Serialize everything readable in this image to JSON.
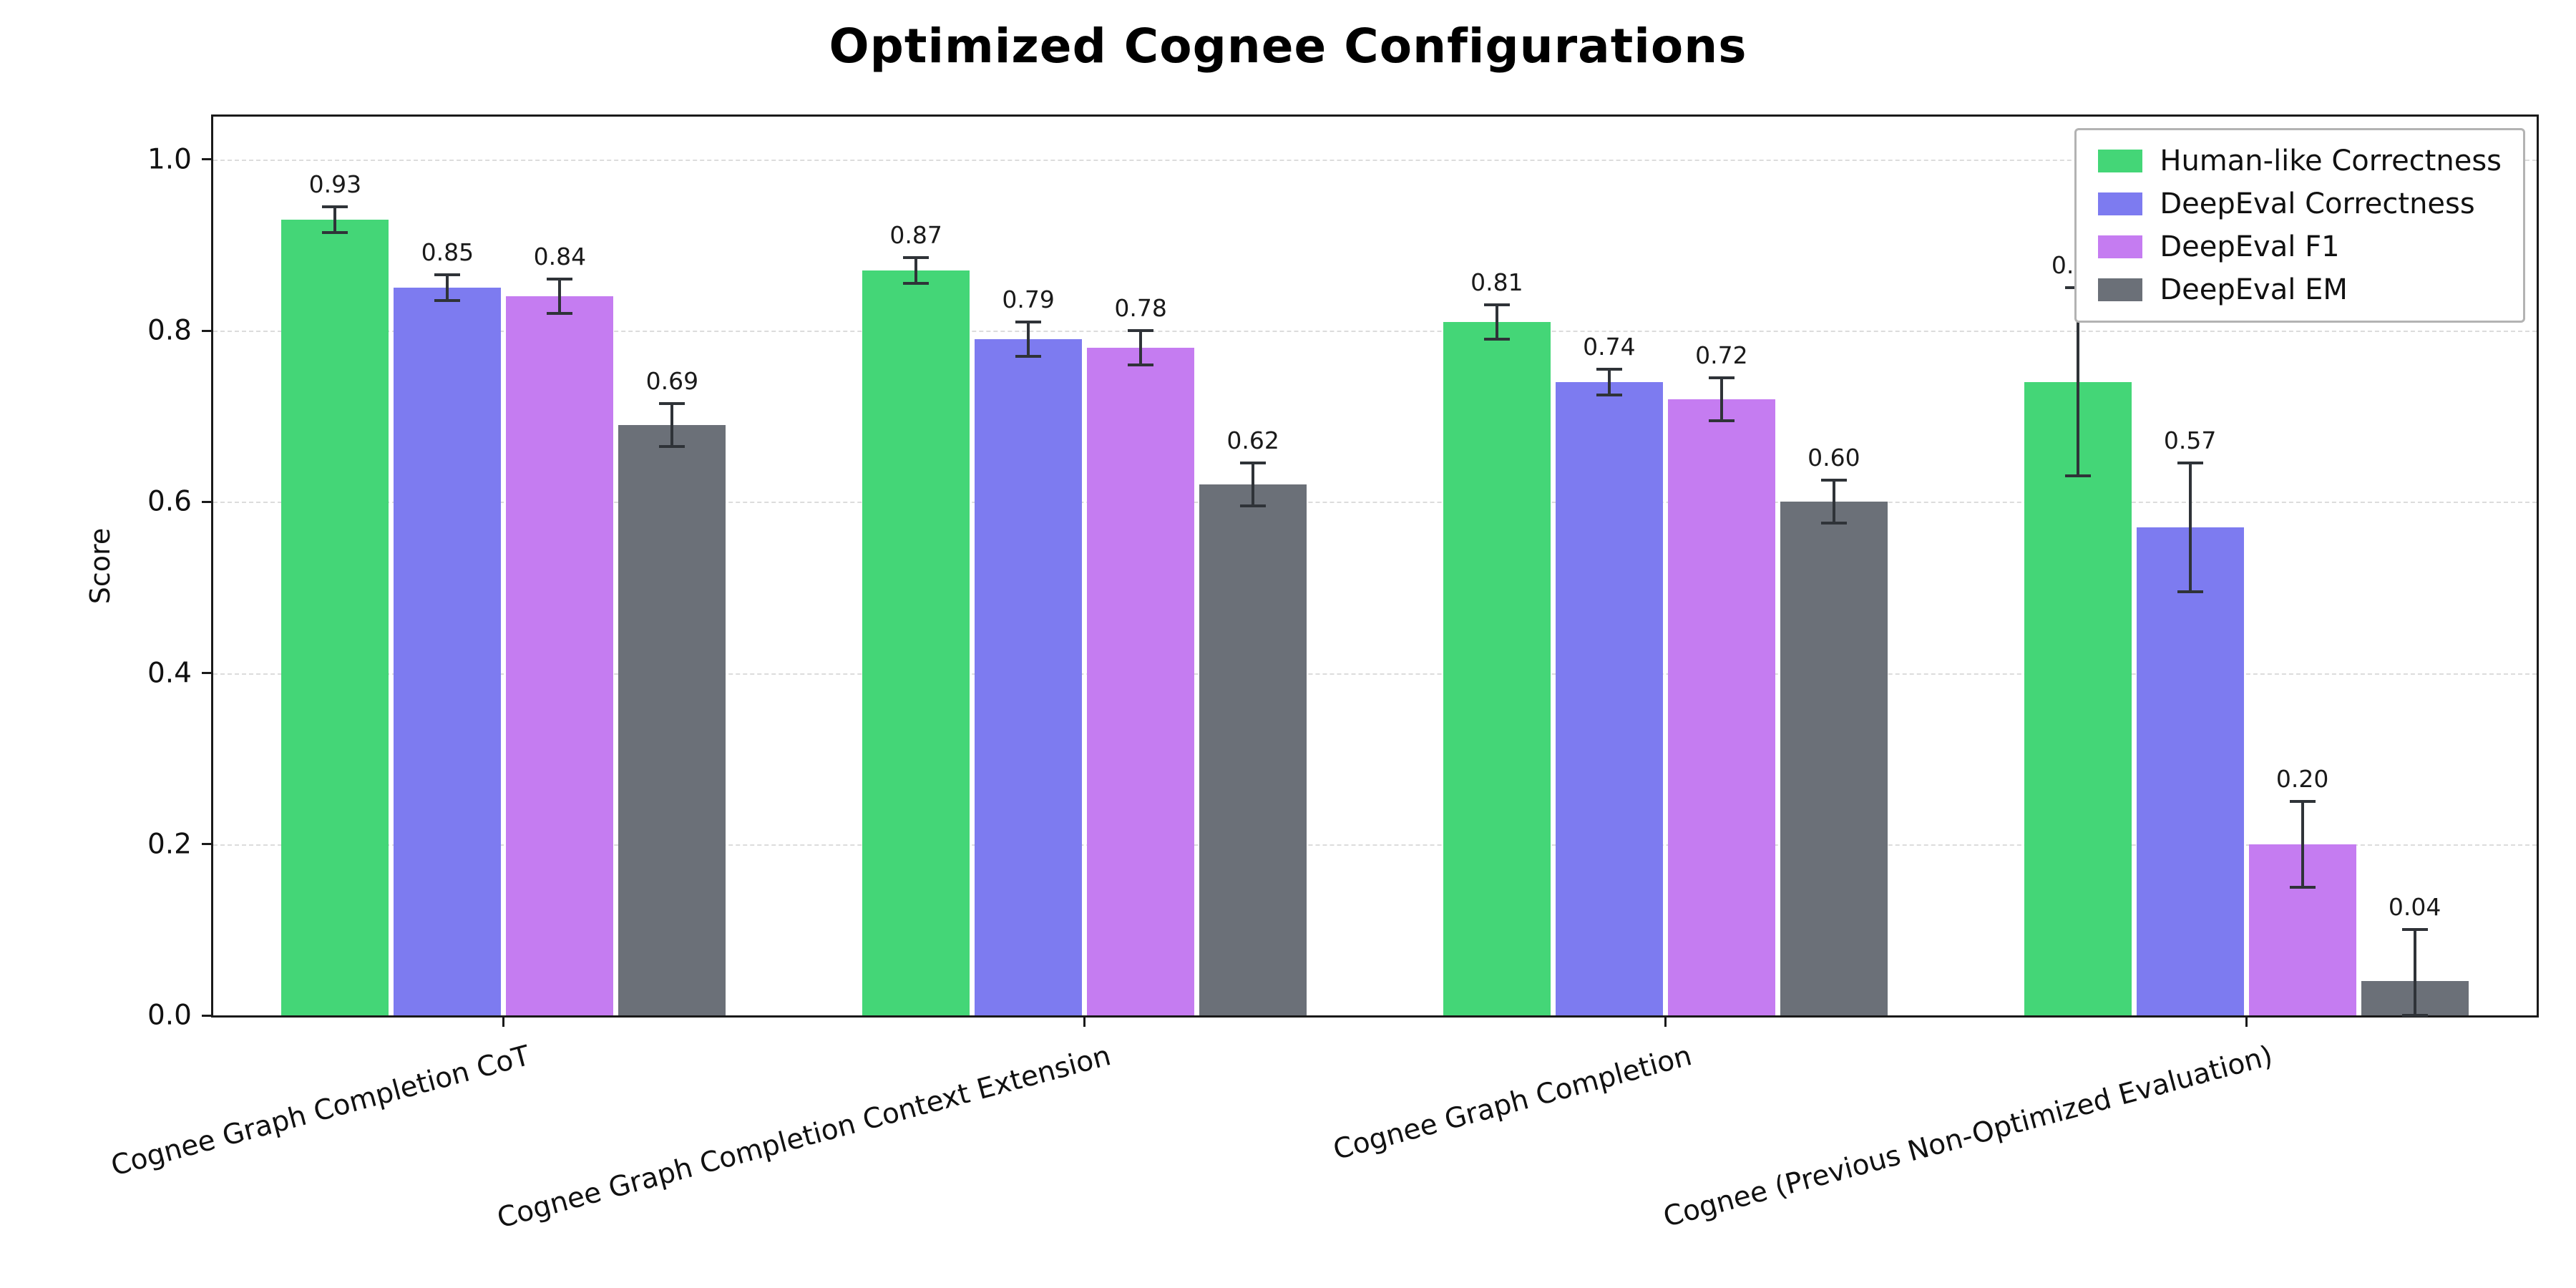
{
  "title": "Optimized Cognee Configurations",
  "chart_data": {
    "type": "bar",
    "title": "Optimized Cognee Configurations",
    "xlabel": "",
    "ylabel": "Score",
    "ylim": [
      0,
      1.05
    ],
    "yticks": [
      0.0,
      0.2,
      0.4,
      0.6,
      0.8,
      1.0
    ],
    "grid": "horizontal-dashed",
    "legend_position": "top-right-inside",
    "categories": [
      "Cognee Graph Completion CoT",
      "Cognee Graph Completion Context Extension",
      "Cognee Graph Completion",
      "Cognee (Previous Non-Optimized Evaluation)"
    ],
    "series": [
      {
        "name": "Human-like Correctness",
        "color": "#44d677",
        "values": [
          0.93,
          0.87,
          0.81,
          0.74
        ],
        "errors": [
          0.015,
          0.015,
          0.02,
          0.11
        ]
      },
      {
        "name": "DeepEval Correctness",
        "color": "#7d7bf0",
        "values": [
          0.85,
          0.79,
          0.74,
          0.57
        ],
        "errors": [
          0.015,
          0.02,
          0.015,
          0.075
        ]
      },
      {
        "name": "DeepEval F1",
        "color": "#c57cf1",
        "values": [
          0.84,
          0.78,
          0.72,
          0.2
        ],
        "errors": [
          0.02,
          0.02,
          0.025,
          0.05
        ]
      },
      {
        "name": "DeepEval EM",
        "color": "#6b7078",
        "values": [
          0.69,
          0.62,
          0.6,
          0.04
        ],
        "errors": [
          0.025,
          0.025,
          0.025,
          0.06
        ]
      }
    ],
    "error_bar_color": "#2f3338",
    "grid_color": "#dcdcdc"
  }
}
